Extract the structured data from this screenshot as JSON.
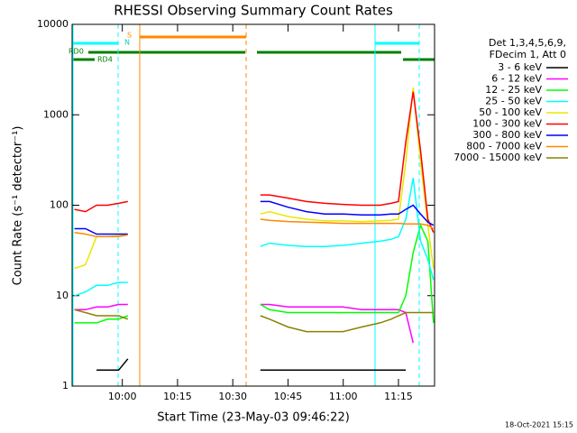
{
  "chart_data": {
    "type": "line",
    "title": "RHESSI Observing Summary Count Rates",
    "x_label": "Start Time (23-May-03 09:46:22)",
    "y_label": "Count Rate (s⁻¹ detector⁻¹)",
    "legend_title": [
      "Det 1,3,4,5,6,9,",
      "FDecim 1, Att 0"
    ],
    "footer": "18-Oct-2021 15:15",
    "flags": [
      "S",
      "N",
      "RD0",
      "RD4"
    ],
    "log_scale": true,
    "xlim": [
      586.37,
      684.8
    ],
    "xticks": [
      {
        "value": 600,
        "label": "10:00"
      },
      {
        "value": 615,
        "label": "10:15"
      },
      {
        "value": 630,
        "label": "10:30"
      },
      {
        "value": 645,
        "label": "10:45"
      },
      {
        "value": 660,
        "label": "11:00"
      },
      {
        "value": 675,
        "label": "11:15"
      }
    ],
    "ylim": [
      1,
      10000
    ],
    "yticks": [
      1,
      10,
      100,
      1000,
      10000
    ],
    "x": [
      587,
      590,
      593,
      596,
      599,
      601.5,
      620,
      637.5,
      640,
      645,
      650,
      655,
      660,
      665,
      670,
      673,
      675,
      677,
      679,
      681,
      683,
      684.5
    ],
    "series": [
      {
        "name": "3 - 6 keV",
        "color": "#000000",
        "values": [
          null,
          null,
          1.5,
          1.5,
          1.5,
          2,
          null,
          1.5,
          1.5,
          1.5,
          1.5,
          1.5,
          1.5,
          1.5,
          1.5,
          1.5,
          1.5,
          1.5,
          null,
          null,
          null,
          null
        ]
      },
      {
        "name": "6 - 12 keV",
        "color": "#ff00ff",
        "values": [
          7,
          7,
          7.5,
          7.5,
          8,
          8,
          null,
          8,
          8,
          7.5,
          7.5,
          7.5,
          7.5,
          7,
          7,
          7,
          7,
          6.5,
          3,
          null,
          null,
          null
        ]
      },
      {
        "name": "12 - 25 keV",
        "color": "#00ff00",
        "values": [
          5,
          5,
          5,
          5.5,
          5.5,
          6,
          null,
          8,
          7,
          6.5,
          6.5,
          6.5,
          6.5,
          6.5,
          6.5,
          6.5,
          6.5,
          10,
          30,
          60,
          40,
          5
        ]
      },
      {
        "name": "25 - 50 keV",
        "color": "#00ffff",
        "values": [
          10,
          11,
          13,
          13,
          14,
          14,
          null,
          35,
          38,
          36,
          35,
          35,
          36,
          38,
          40,
          42,
          45,
          70,
          200,
          40,
          25,
          15
        ]
      },
      {
        "name": "50 - 100 keV",
        "color": "#e8e800",
        "values": [
          20,
          22,
          45,
          45,
          46,
          48,
          null,
          80,
          85,
          75,
          70,
          67,
          67,
          66,
          67,
          68,
          70,
          300,
          2000,
          300,
          60,
          20
        ]
      },
      {
        "name": "100 - 300 keV",
        "color": "#ff0000",
        "values": [
          90,
          85,
          100,
          100,
          105,
          110,
          null,
          130,
          130,
          120,
          110,
          105,
          102,
          100,
          100,
          105,
          110,
          500,
          1800,
          400,
          70,
          50
        ]
      },
      {
        "name": "300 - 800 keV",
        "color": "#0000ff",
        "values": [
          55,
          55,
          48,
          48,
          48,
          48,
          null,
          110,
          110,
          95,
          85,
          80,
          80,
          78,
          78,
          80,
          80,
          90,
          100,
          80,
          65,
          60
        ]
      },
      {
        "name": "800 - 7000 keV",
        "color": "#ff8800",
        "values": [
          50,
          48,
          45,
          45,
          45,
          47,
          null,
          70,
          68,
          66,
          65,
          64,
          63,
          63,
          63,
          63,
          63,
          62,
          62,
          62,
          60,
          55
        ]
      },
      {
        "name": "7000 - 15000 keV",
        "color": "#8b8000",
        "values": [
          7,
          6.5,
          6,
          6,
          6,
          5.5,
          null,
          6,
          5.5,
          4.5,
          4,
          4,
          4,
          4.5,
          5,
          5.5,
          6,
          6.5,
          6.5,
          6.5,
          6.5,
          6.5
        ]
      }
    ]
  }
}
